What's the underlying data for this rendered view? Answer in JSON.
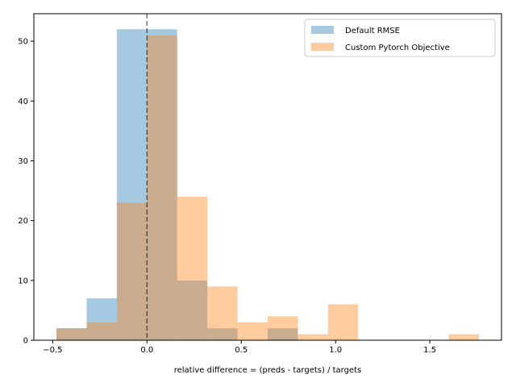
{
  "chart_data": {
    "type": "bar",
    "histogram": true,
    "title": "",
    "xlabel": "relative difference = (preds - targets) / targets",
    "ylabel": "",
    "xlim": [
      -0.6,
      1.88
    ],
    "ylim": [
      0,
      54.6
    ],
    "xticks": [
      -0.5,
      0.0,
      0.5,
      1.0,
      1.5
    ],
    "xtick_labels": [
      "−0.5",
      "0.0",
      "0.5",
      "1.0",
      "1.5"
    ],
    "yticks": [
      0,
      10,
      20,
      30,
      40,
      50
    ],
    "ytick_labels": [
      "0",
      "10",
      "20",
      "30",
      "40",
      "50"
    ],
    "bin_edges": [
      -0.48,
      -0.32,
      -0.16,
      0.0,
      0.16,
      0.32,
      0.48,
      0.64,
      0.8,
      0.96,
      1.12,
      1.28,
      1.44,
      1.6,
      1.76
    ],
    "series": [
      {
        "name": "Default RMSE",
        "color": "#1f77b4",
        "alpha": 0.4,
        "values": [
          2,
          7,
          52,
          52,
          10,
          2,
          0,
          2,
          0,
          0,
          0,
          0,
          0,
          0
        ]
      },
      {
        "name": "Custom Pytorch Objective",
        "color": "#ff7f0e",
        "alpha": 0.4,
        "values": [
          2,
          3,
          23,
          51,
          24,
          9,
          3,
          4,
          1,
          6,
          0,
          0,
          0,
          1
        ]
      }
    ],
    "reference_line": {
      "x": 0.0,
      "style": "dashed",
      "color": "#000000"
    },
    "legend": {
      "placement": "top-right"
    },
    "grid": false
  }
}
